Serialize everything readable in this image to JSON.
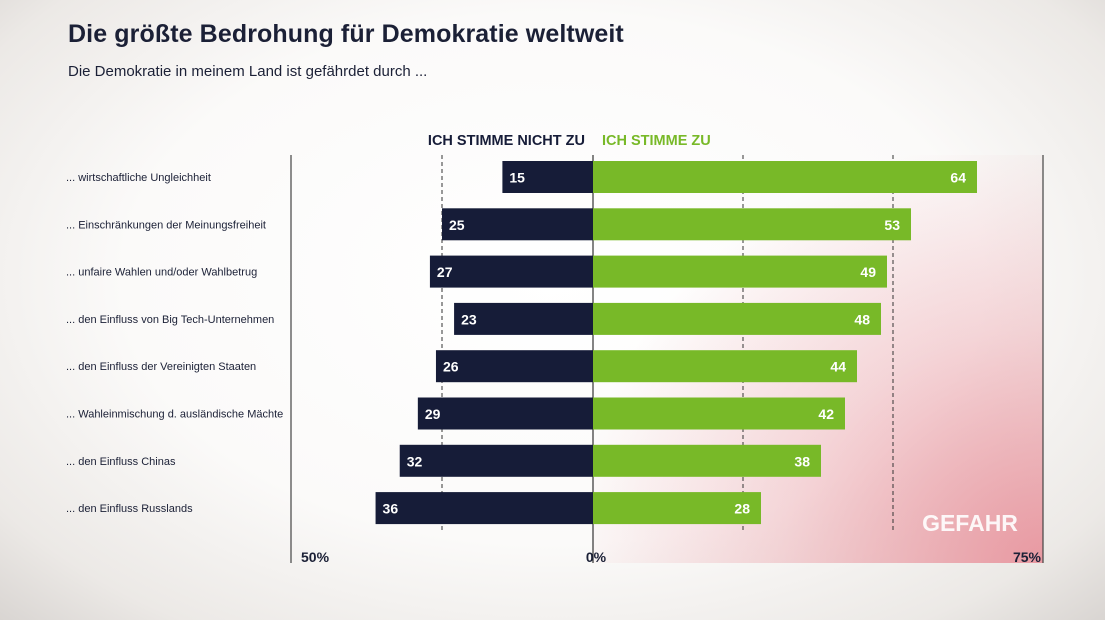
{
  "title": "Die größte Bedrohung für Demokratie weltweit",
  "subtitle": "Die Demokratie in meinem Land ist gefährdet durch ...",
  "colors": {
    "disagree": "#161c38",
    "agree": "#78b928",
    "text": "#1b2036",
    "danger_zone": "#e8909a"
  },
  "chart_data": {
    "type": "bar",
    "orientation": "horizontal-diverging",
    "categories": [
      "... wirtschaftliche Ungleichheit",
      "... Einschränkungen der Meinungsfreiheit",
      "... unfaire Wahlen und/oder Wahlbetrug",
      "... den Einfluss von Big Tech-Unternehmen",
      "... den Einfluss der Vereinigten Staaten",
      "... Wahleinmischung d. ausländische Mächte",
      "... den Einfluss Chinas",
      "... den Einfluss Russlands"
    ],
    "series": [
      {
        "name": "ICH STIMME NICHT ZU",
        "direction": "left",
        "values": [
          15,
          25,
          27,
          23,
          26,
          29,
          32,
          36
        ]
      },
      {
        "name": "ICH STIMME ZU",
        "direction": "right",
        "values": [
          64,
          53,
          49,
          48,
          44,
          42,
          38,
          28
        ]
      }
    ],
    "axis_labels": {
      "left": "50%",
      "center": "0%",
      "right": "75%"
    },
    "xlim_left": [
      0,
      50
    ],
    "xlim_right": [
      0,
      75
    ],
    "gridlines_left": [
      25
    ],
    "gridlines_right": [
      25,
      50
    ],
    "annotation": "GEFAHR"
  }
}
